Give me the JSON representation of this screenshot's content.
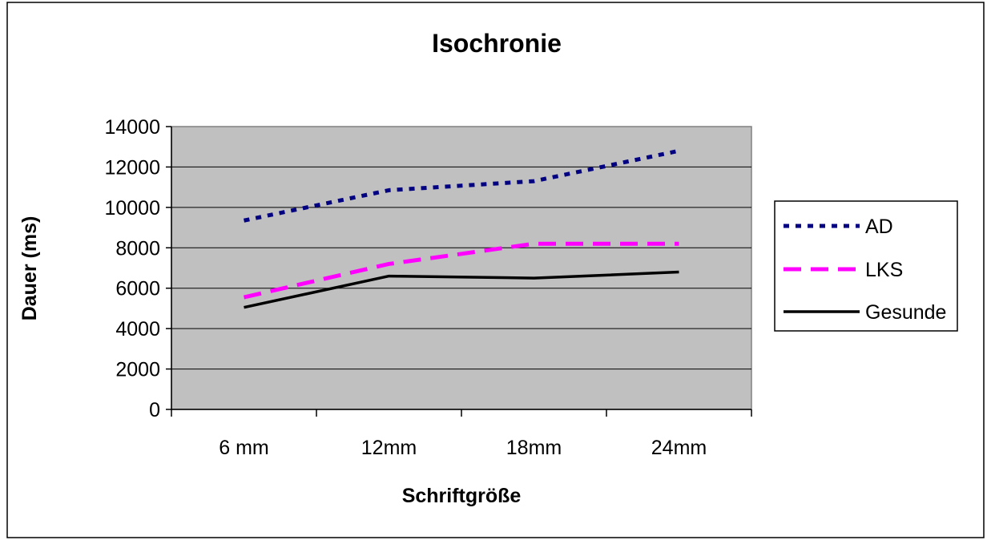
{
  "chart_data": {
    "type": "line",
    "title": "Isochronie",
    "xlabel": "Schriftgröße",
    "ylabel": "Dauer (ms)",
    "categories": [
      "6 mm",
      "12mm",
      "18mm",
      "24mm"
    ],
    "ylim": [
      0,
      14000
    ],
    "yticks": [
      0,
      2000,
      4000,
      6000,
      8000,
      10000,
      12000,
      14000
    ],
    "grid": true,
    "legend": "right",
    "plot_background": "#C0C0C0",
    "series": [
      {
        "name": "AD",
        "values": [
          9350,
          10850,
          11300,
          12800
        ],
        "color": "#000080",
        "dash": "dotted"
      },
      {
        "name": "LKS",
        "values": [
          5550,
          7200,
          8200,
          8200
        ],
        "color": "#FF00FF",
        "dash": "dashed"
      },
      {
        "name": "Gesunde",
        "values": [
          5050,
          6600,
          6500,
          6800
        ],
        "color": "#000000",
        "dash": "solid"
      }
    ]
  }
}
